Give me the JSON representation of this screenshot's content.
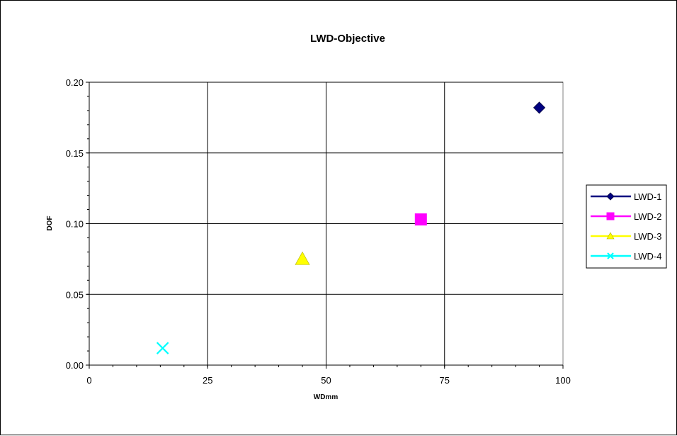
{
  "chart_data": {
    "type": "scatter",
    "title": "LWD-Objective",
    "xlabel": "WDmm",
    "ylabel": "DOF",
    "xlim": [
      0,
      100
    ],
    "ylim": [
      0,
      0.2
    ],
    "x_ticks": [
      "0",
      "25",
      "50",
      "75",
      "100"
    ],
    "y_ticks": [
      "0.00",
      "0.05",
      "0.10",
      "0.15",
      "0.20"
    ],
    "grid": true,
    "legend_position": "right",
    "series": [
      {
        "name": "LWD-1",
        "color": "#000080",
        "marker": "diamond",
        "x": [
          95
        ],
        "y": [
          0.182
        ]
      },
      {
        "name": "LWD-2",
        "color": "#FF00FF",
        "marker": "square",
        "x": [
          70
        ],
        "y": [
          0.103
        ]
      },
      {
        "name": "LWD-3",
        "color": "#FFFF00",
        "marker": "triangle",
        "x": [
          45
        ],
        "y": [
          0.075
        ]
      },
      {
        "name": "LWD-4",
        "color": "#00FFFF",
        "marker": "x",
        "x": [
          15.5
        ],
        "y": [
          0.012
        ]
      }
    ]
  }
}
